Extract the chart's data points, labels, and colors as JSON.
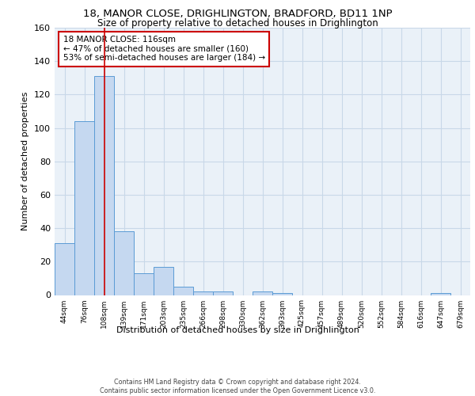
{
  "title1": "18, MANOR CLOSE, DRIGHLINGTON, BRADFORD, BD11 1NP",
  "title2": "Size of property relative to detached houses in Drighlington",
  "xlabel": "Distribution of detached houses by size in Drighlington",
  "ylabel": "Number of detached properties",
  "footnote": "Contains HM Land Registry data © Crown copyright and database right 2024.\nContains public sector information licensed under the Open Government Licence v3.0.",
  "categories": [
    "44sqm",
    "76sqm",
    "108sqm",
    "139sqm",
    "171sqm",
    "203sqm",
    "235sqm",
    "266sqm",
    "298sqm",
    "330sqm",
    "362sqm",
    "393sqm",
    "425sqm",
    "457sqm",
    "489sqm",
    "520sqm",
    "552sqm",
    "584sqm",
    "616sqm",
    "647sqm",
    "679sqm"
  ],
  "values": [
    31,
    104,
    131,
    38,
    13,
    17,
    5,
    2,
    2,
    0,
    2,
    1,
    0,
    0,
    0,
    0,
    0,
    0,
    0,
    1,
    0
  ],
  "bar_color": "#c5d8f0",
  "bar_edge_color": "#5b9bd5",
  "grid_color": "#c8d8e8",
  "bg_color": "#eaf1f8",
  "vline_x": 2,
  "vline_color": "#cc0000",
  "annotation_text": "18 MANOR CLOSE: 116sqm\n← 47% of detached houses are smaller (160)\n53% of semi-detached houses are larger (184) →",
  "annotation_box_color": "#ffffff",
  "annotation_box_edge": "#cc0000",
  "ylim": [
    0,
    160
  ],
  "yticks": [
    0,
    20,
    40,
    60,
    80,
    100,
    120,
    140,
    160
  ]
}
